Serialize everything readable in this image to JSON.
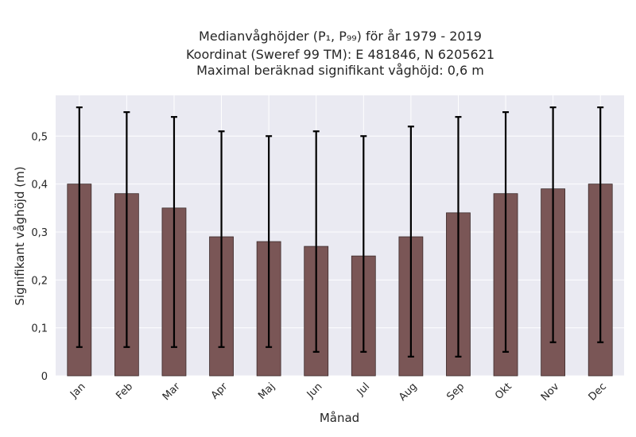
{
  "chart_data": {
    "type": "bar",
    "title_lines": [
      "Medianvåghöjder (P₁, P₉₉) för år 1979 - 2019",
      "Koordinat (Sweref 99 TM): E 481846, N 6205621",
      "Maximal beräknad signifikant våghöjd: 0,6 m"
    ],
    "xlabel": "Månad",
    "ylabel": "Signifikant våghöjd (m)",
    "categories": [
      "Jan",
      "Feb",
      "Mar",
      "Apr",
      "Maj",
      "Jun",
      "Jul",
      "Aug",
      "Sep",
      "Okt",
      "Nov",
      "Dec"
    ],
    "values": [
      0.4,
      0.38,
      0.35,
      0.29,
      0.28,
      0.27,
      0.25,
      0.29,
      0.34,
      0.38,
      0.39,
      0.4
    ],
    "p1": [
      0.06,
      0.06,
      0.06,
      0.06,
      0.06,
      0.05,
      0.05,
      0.04,
      0.04,
      0.05,
      0.07,
      0.07
    ],
    "p99": [
      0.56,
      0.55,
      0.54,
      0.51,
      0.5,
      0.51,
      0.5,
      0.52,
      0.54,
      0.55,
      0.56,
      0.56
    ],
    "ylim": [
      0,
      0.585
    ],
    "yticks": [
      0,
      0.1,
      0.2,
      0.3,
      0.4,
      0.5
    ],
    "ytick_labels": [
      "0",
      "0,1",
      "0,2",
      "0,3",
      "0,4",
      "0,5"
    ],
    "grid": true,
    "colors": {
      "bar_fill": "#7a5656",
      "bar_edge": "#3c2b2b",
      "error_bar": "#000000",
      "plot_background": "#eaeaf2",
      "grid": "#ffffff"
    }
  }
}
